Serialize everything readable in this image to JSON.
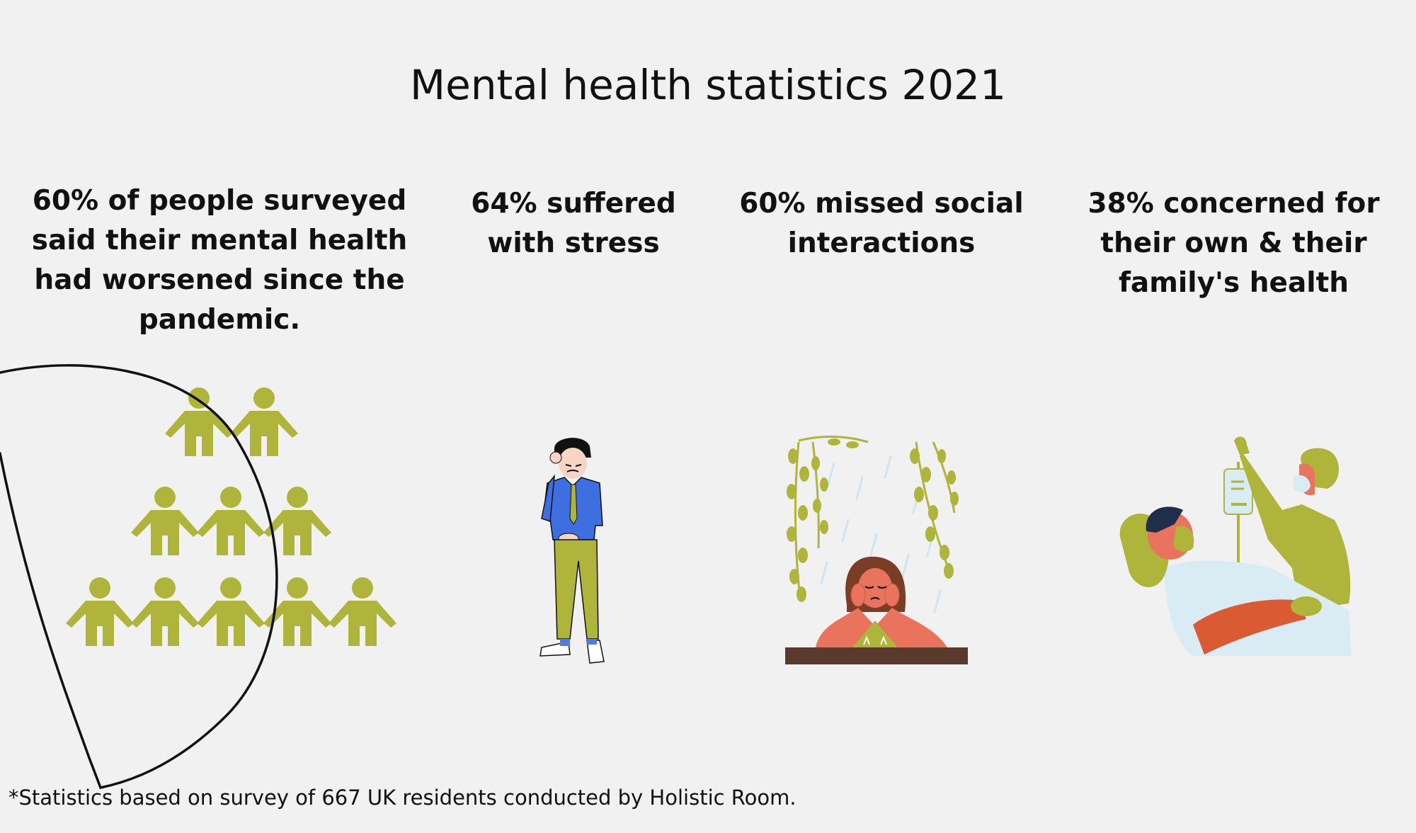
{
  "title": "Mental health statistics 2021",
  "stats": [
    {
      "text": "60% of people surveyed said their mental health had worsened since the pandemic.",
      "icon": "people-group-icon"
    },
    {
      "text": "64% suffered with stress",
      "icon": "stressed-man-icon"
    },
    {
      "text": "60% missed social interactions",
      "icon": "sad-woman-window-icon"
    },
    {
      "text": "38% concerned for their own & their family's health",
      "icon": "hospital-patient-icon"
    }
  ],
  "footnote": "*Statistics based on survey of 667 UK residents conducted by Holistic Room.",
  "colors": {
    "background": "#f1f1f1",
    "accent_green": "#afb43a",
    "text": "#111111",
    "skin": "#e9735c",
    "shirt_blue": "#3d6fe0",
    "light_blue": "#d9ecf4",
    "table_brown": "#5a3a2a"
  }
}
